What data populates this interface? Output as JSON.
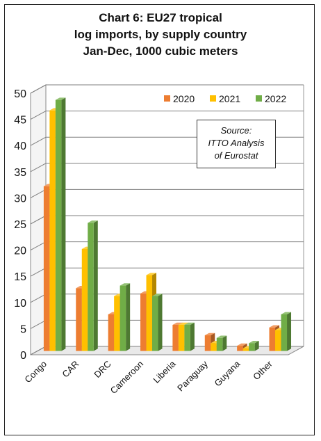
{
  "chart_data": {
    "type": "bar",
    "title_lines": [
      "Chart 6: EU27 tropical",
      "log imports, by supply country",
      "Jan-Dec, 1000 cubic meters"
    ],
    "categories": [
      "Congo",
      "CAR",
      "DRC",
      "Cameroon",
      "Liberia",
      "Paraguay",
      "Guyana",
      "Other"
    ],
    "series": [
      {
        "name": "2020",
        "color": "#ED7D31",
        "values": [
          31.5,
          12,
          7,
          11,
          5,
          3,
          1,
          4.5
        ]
      },
      {
        "name": "2021",
        "color": "#FFC000",
        "values": [
          46,
          19.5,
          10.5,
          14.5,
          5,
          1.5,
          0.5,
          4
        ]
      },
      {
        "name": "2022",
        "color": "#70AD47",
        "values": [
          48,
          24.5,
          12.5,
          10.5,
          5,
          2.5,
          1.5,
          7
        ]
      }
    ],
    "yticks": [
      "0",
      "5",
      "10",
      "15",
      "20",
      "25",
      "30",
      "35",
      "40",
      "45",
      "50"
    ],
    "ylim": [
      0,
      50
    ],
    "grid": true,
    "legend_position": "top-right",
    "source_lines": [
      "Source:",
      "ITTO  Analysis",
      "of Eurostat"
    ]
  }
}
